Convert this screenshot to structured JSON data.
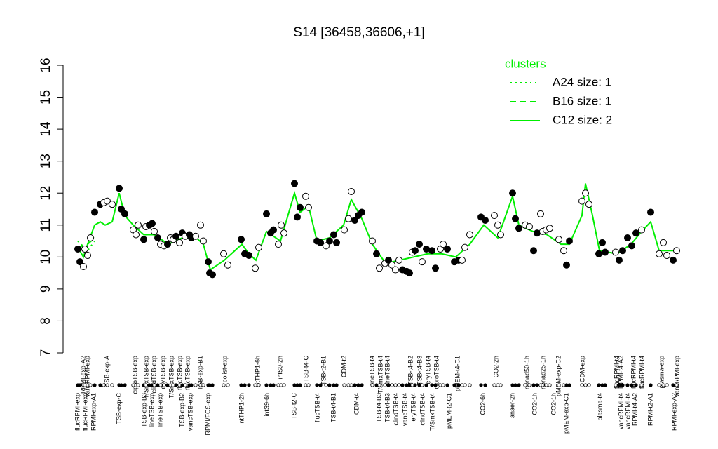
{
  "chart_data": {
    "type": "scatter",
    "title": "S14 [36458,36606,+1]",
    "xlim": [
      0,
      87
    ],
    "ylim": [
      7,
      16
    ],
    "yticks": [
      7,
      8,
      9,
      10,
      11,
      12,
      13,
      14,
      15,
      16
    ],
    "legend_title": "clusters",
    "legend_color": "#00ee00",
    "legend_position": "top-right",
    "points": {
      "x": [
        1.1,
        1.4,
        1.9,
        2.1,
        2.5,
        2.9,
        3.5,
        4.3,
        4.8,
        5.3,
        6.0,
        7.0,
        7.3,
        7.8,
        9.0,
        9.4,
        9.7,
        10.5,
        10.8,
        11.3,
        11.7,
        12.0,
        12.5,
        12.9,
        13.4,
        13.9,
        14.3,
        14.7,
        15.1,
        15.6,
        16.0,
        16.4,
        17.0,
        17.3,
        17.9,
        18.6,
        19.0,
        19.7,
        19.9,
        20.3,
        21.9,
        22.5,
        24.4,
        24.9,
        25.5,
        26.4,
        26.9,
        28.0,
        28.6,
        29.0,
        29.7,
        30.1,
        30.5,
        32.0,
        32.4,
        32.8,
        33.6,
        34.0,
        35.2,
        35.7,
        36.5,
        37.0,
        37.6,
        38.0,
        39.1,
        39.7,
        40.1,
        40.6,
        41.1,
        41.6,
        43.1,
        43.7,
        44.1,
        44.9,
        45.4,
        45.9,
        46.4,
        46.9,
        47.4,
        48.0,
        48.4,
        48.8,
        49.2,
        49.8,
        50.2,
        50.8,
        51.6,
        52.1,
        52.8,
        53.2,
        53.8,
        54.8,
        55.4,
        55.9,
        56.3,
        57.0,
        58.6,
        59.2,
        60.5,
        61.0,
        61.4,
        63.1,
        63.5,
        64.0,
        64.9,
        65.5,
        66.1,
        66.6,
        67.1,
        67.4,
        67.9,
        68.4,
        69.7,
        70.4,
        70.8,
        71.2,
        73.0,
        73.5,
        74.0,
        75.4,
        75.9,
        76.3,
        77.8,
        78.3,
        78.8,
        79.5,
        80.1,
        80.7,
        81.5,
        82.8,
        84.0,
        84.6,
        85.1,
        86.0,
        86.5
      ],
      "y": [
        10.25,
        9.85,
        9.7,
        10.25,
        10.05,
        10.6,
        11.4,
        11.65,
        11.7,
        11.75,
        11.65,
        12.15,
        11.5,
        11.35,
        10.85,
        10.7,
        11.0,
        10.55,
        10.95,
        11.0,
        11.05,
        10.8,
        10.6,
        10.4,
        10.35,
        10.4,
        10.6,
        10.55,
        10.65,
        10.45,
        10.75,
        10.65,
        10.7,
        10.6,
        10.65,
        11.0,
        10.5,
        9.85,
        9.5,
        9.45,
        10.1,
        9.75,
        10.55,
        10.1,
        10.05,
        9.65,
        10.3,
        11.35,
        10.75,
        10.85,
        10.4,
        11.0,
        10.75,
        12.3,
        11.25,
        11.55,
        11.9,
        11.55,
        10.5,
        10.45,
        10.35,
        10.5,
        10.7,
        10.45,
        10.85,
        11.2,
        12.05,
        11.15,
        11.3,
        11.4,
        10.5,
        10.1,
        9.65,
        9.8,
        9.9,
        9.75,
        9.6,
        9.9,
        9.6,
        9.55,
        9.5,
        10.15,
        10.2,
        10.4,
        9.85,
        10.25,
        10.2,
        9.65,
        10.25,
        10.4,
        10.25,
        9.85,
        9.9,
        9.9,
        10.3,
        10.7,
        11.25,
        11.15,
        11.3,
        11.0,
        10.7,
        12.0,
        11.2,
        10.9,
        11.0,
        10.95,
        10.2,
        10.75,
        11.35,
        10.8,
        10.85,
        10.9,
        10.55,
        10.2,
        9.75,
        10.5,
        11.75,
        12.0,
        11.65,
        10.1,
        10.45,
        10.15,
        10.15,
        9.9,
        10.2,
        10.6,
        10.35,
        10.75,
        10.85,
        11.4,
        10.1,
        10.45,
        10.05,
        9.9,
        10.2
      ],
      "filled": [
        true,
        true,
        false,
        false,
        false,
        false,
        true,
        true,
        false,
        false,
        false,
        true,
        true,
        true,
        false,
        false,
        false,
        true,
        false,
        true,
        true,
        false,
        true,
        false,
        false,
        true,
        false,
        false,
        true,
        false,
        true,
        false,
        true,
        true,
        false,
        false,
        false,
        true,
        true,
        true,
        false,
        false,
        true,
        true,
        true,
        false,
        false,
        true,
        true,
        true,
        false,
        false,
        false,
        true,
        true,
        true,
        false,
        false,
        true,
        true,
        false,
        true,
        true,
        true,
        false,
        false,
        false,
        true,
        true,
        true,
        false,
        true,
        false,
        false,
        true,
        false,
        false,
        false,
        true,
        true,
        true,
        false,
        true,
        true,
        false,
        true,
        true,
        true,
        false,
        false,
        true,
        true,
        true,
        false,
        false,
        false,
        true,
        true,
        false,
        false,
        false,
        true,
        true,
        true,
        false,
        false,
        true,
        true,
        false,
        false,
        false,
        false,
        false,
        false,
        true,
        true,
        false,
        false,
        false,
        true,
        true,
        true,
        false,
        true,
        true,
        true,
        true,
        true,
        false,
        true,
        false,
        false,
        false,
        true,
        false
      ]
    },
    "series": [
      {
        "name": "A24 size: 1",
        "color": "#00ee00",
        "dash": "dotted",
        "x": [
          1.1,
          2.5,
          3.5
        ],
        "values": [
          10.5,
          10.2,
          10.5
        ]
      },
      {
        "name": "B16 size: 1",
        "color": "#00ee00",
        "dash": "dashed",
        "x": [
          1.1,
          2.5,
          3.5
        ],
        "values": [
          10.3,
          10.4,
          10.6
        ]
      },
      {
        "name": "C12 size: 2",
        "color": "#00ee00",
        "dash": "solid",
        "x": [
          1.1,
          1.9,
          2.5,
          3.5,
          4.3,
          5.0,
          6.0,
          7.0,
          7.8,
          9.0,
          10.5,
          12.0,
          14.0,
          16.0,
          18.0,
          19.0,
          20.0,
          22.0,
          24.5,
          25.5,
          26.5,
          28.0,
          30.0,
          32.0,
          32.8,
          34.0,
          35.2,
          37.0,
          39.0,
          40.1,
          41.6,
          43.1,
          45.0,
          47.0,
          49.0,
          51.0,
          53.0,
          55.0,
          57.0,
          59.0,
          61.0,
          63.1,
          64.0,
          66.0,
          68.0,
          70.0,
          71.2,
          73.0,
          73.5,
          74.5,
          75.5,
          78.0,
          80.0,
          81.5,
          82.8,
          84.0,
          86.5
        ],
        "values": [
          10.3,
          10.0,
          10.4,
          11.0,
          11.1,
          11.0,
          11.1,
          12.0,
          11.3,
          11.0,
          10.7,
          10.7,
          10.4,
          10.6,
          10.6,
          10.4,
          9.6,
          9.9,
          10.4,
          10.1,
          9.9,
          10.8,
          10.5,
          12.0,
          11.4,
          11.6,
          10.5,
          10.6,
          11.0,
          11.8,
          11.2,
          10.4,
          9.8,
          9.9,
          10.0,
          10.1,
          10.1,
          10.0,
          10.4,
          11.0,
          10.6,
          11.9,
          11.0,
          10.8,
          10.7,
          10.4,
          10.4,
          11.3,
          12.3,
          11.3,
          10.2,
          10.1,
          10.4,
          10.8,
          11.1,
          10.2,
          10.2
        ]
      }
    ],
    "xlabels_top": [
      {
        "value": 1.9,
        "label": "RPMI-exp-A2"
      },
      {
        "value": 2.5,
        "label": "vancRPMI-exp"
      },
      {
        "value": 5.3,
        "label": "TSB-exp-A"
      },
      {
        "value": 9.3,
        "label": "ciproTSB-exp"
      },
      {
        "value": 10.9,
        "label": "T/SmxTSB-exp"
      },
      {
        "value": 12.0,
        "label": "clindTSB-exp"
      },
      {
        "value": 13.3,
        "label": "eryTSB-exp"
      },
      {
        "value": 14.5,
        "label": "T/SmxTSB-exp"
      },
      {
        "value": 15.7,
        "label": "flucTSB-exp"
      },
      {
        "value": 16.8,
        "label": "flucTSB-exp"
      },
      {
        "value": 18.6,
        "label": "TSB-exp-B1"
      },
      {
        "value": 22.1,
        "label": "colist-exp"
      },
      {
        "value": 26.8,
        "label": "intTHP1-6h"
      },
      {
        "value": 30.0,
        "label": "intS9-2h"
      },
      {
        "value": 33.7,
        "label": "TSB-t4-C"
      },
      {
        "value": 36.2,
        "label": "TSB-t2-B1"
      },
      {
        "value": 39.1,
        "label": "CDM-t2"
      },
      {
        "value": 43.1,
        "label": "lineTSB-t4"
      },
      {
        "value": 44.3,
        "label": "T/SmxTSB-t4"
      },
      {
        "value": 45.3,
        "label": "lineTSB-t4"
      },
      {
        "value": 48.6,
        "label": "TSB-t4-B2"
      },
      {
        "value": 49.9,
        "label": "TSB-t4-B3"
      },
      {
        "value": 51.1,
        "label": "eryTSB-t4"
      },
      {
        "value": 52.3,
        "label": "ciproTSB-t4"
      },
      {
        "value": 55.3,
        "label": "pMEM-t4-C1"
      },
      {
        "value": 60.8,
        "label": "CO2-2h"
      },
      {
        "value": 65.2,
        "label": "nonad50-1h"
      },
      {
        "value": 67.5,
        "label": "nonad25-1h"
      },
      {
        "value": 69.7,
        "label": "pMEM-exp-C2"
      },
      {
        "value": 73.1,
        "label": "CDM-exp"
      },
      {
        "value": 78.0,
        "label": "flucRPMI-t4"
      },
      {
        "value": 78.6,
        "label": "RPMI-t4-A2"
      },
      {
        "value": 80.4,
        "label": "flucRPMI-t4"
      },
      {
        "value": 81.6,
        "label": "flucRPMI-t4"
      },
      {
        "value": 84.4,
        "label": "plasma-exp"
      },
      {
        "value": 86.6,
        "label": "vancRPMI-exp"
      }
    ],
    "xlabels_bottom": [
      {
        "value": 1.1,
        "label": "flucRPMI-exp"
      },
      {
        "value": 2.2,
        "label": "flucRPMI-exp"
      },
      {
        "value": 3.4,
        "label": "RPMI-exp-A1"
      },
      {
        "value": 7.0,
        "label": "TSB-exp-C"
      },
      {
        "value": 10.6,
        "label": "TSB-exp-B3"
      },
      {
        "value": 11.7,
        "label": "lineTSB-exp"
      },
      {
        "value": 12.9,
        "label": "lineTSB-exp"
      },
      {
        "value": 16.0,
        "label": "TSB-exp-B2"
      },
      {
        "value": 17.2,
        "label": "vancTSB-exp"
      },
      {
        "value": 19.7,
        "label": "RPMI/FCS-exp"
      },
      {
        "value": 24.5,
        "label": "intTHP1-2h"
      },
      {
        "value": 28.1,
        "label": "intS9-6h"
      },
      {
        "value": 32.0,
        "label": "TSB-t2-C"
      },
      {
        "value": 35.3,
        "label": "flucTSB-t4"
      },
      {
        "value": 37.6,
        "label": "TSB-t4-B1"
      },
      {
        "value": 40.9,
        "label": "CDM-t4"
      },
      {
        "value": 44.1,
        "label": "TSB-t4-B3"
      },
      {
        "value": 45.3,
        "label": "TSB-t4-B3"
      },
      {
        "value": 46.5,
        "label": "clindTSB-t4"
      },
      {
        "value": 47.8,
        "label": "vancTSB-t4"
      },
      {
        "value": 49.0,
        "label": "eryTSB-t4"
      },
      {
        "value": 50.3,
        "label": "clindTSB-t4"
      },
      {
        "value": 51.7,
        "label": "T/SmxTSB-t4"
      },
      {
        "value": 54.1,
        "label": "pMEM-t2-C1"
      },
      {
        "value": 58.9,
        "label": "CO2-6h"
      },
      {
        "value": 63.1,
        "label": "anaer-2h"
      },
      {
        "value": 66.3,
        "label": "CO2-1h"
      },
      {
        "value": 69.0,
        "label": "CO2-1h"
      },
      {
        "value": 70.8,
        "label": "pMEM-exp-C1"
      },
      {
        "value": 75.6,
        "label": "plasma-t4"
      },
      {
        "value": 78.6,
        "label": "vancRPMI-t4"
      },
      {
        "value": 79.6,
        "label": "vancRPMI-t4"
      },
      {
        "value": 80.6,
        "label": "RPMI-t4-A2"
      },
      {
        "value": 82.8,
        "label": "RPMI-t2-A1"
      },
      {
        "value": 86.2,
        "label": "RPMI-exp-A2"
      }
    ]
  }
}
